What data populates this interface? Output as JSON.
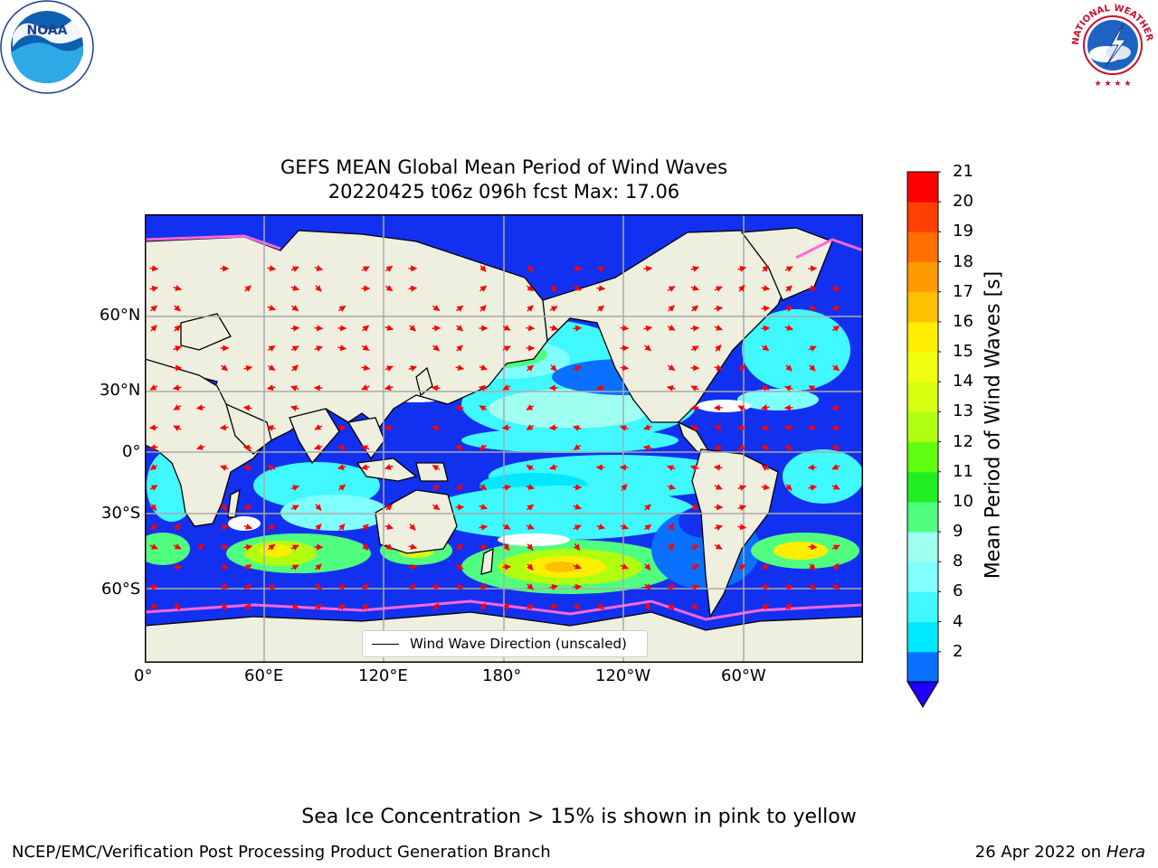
{
  "title": {
    "line1": "GEFS MEAN Global Mean Period of Wind Waves",
    "line2": "20220425 t06z 096h fcst   Max: 17.06"
  },
  "map": {
    "lon_ticks": [
      "0°",
      "60°E",
      "120°E",
      "180°",
      "120°W",
      "60°W"
    ],
    "lat_ticks": [
      "60°N",
      "30°N",
      "0°",
      "30°S",
      "60°S"
    ],
    "legend_text": "Wind Wave Direction (unscaled)",
    "land_color": "#efefdf",
    "ocean_nodata_color": "#ffffff"
  },
  "colorbar": {
    "label": "Mean Period of Wind Waves [s]",
    "ticks": [
      "21",
      "20",
      "19",
      "18",
      "17",
      "16",
      "15",
      "14",
      "13",
      "12",
      "11",
      "10",
      "9",
      "8",
      "6",
      "4",
      "2"
    ],
    "levels": [
      2,
      4,
      6,
      7,
      8,
      9,
      10,
      11,
      12,
      13,
      14,
      15,
      16,
      17,
      18,
      19,
      20,
      21
    ],
    "colors": [
      "#0a70ff",
      "#00e8ff",
      "#40f8ff",
      "#80ffff",
      "#a0fff0",
      "#50ff80",
      "#20ee20",
      "#60ff10",
      "#b0ff10",
      "#d8ff10",
      "#f0ff10",
      "#ffee00",
      "#ffc000",
      "#ff9a00",
      "#ff7000",
      "#ff4000",
      "#ff0000"
    ],
    "under_color": "#1f00ff"
  },
  "note": "Sea Ice Concentration > 15% is shown in pink to yellow",
  "footer": {
    "left": "NCEP/EMC/Verification Post Processing Product Generation Branch",
    "date": "26 Apr 2022 on ",
    "machine": "Hera"
  },
  "logos": {
    "noaa_text": "NOAA",
    "nws_text": "NATIONAL WEATHER SERVICE"
  }
}
